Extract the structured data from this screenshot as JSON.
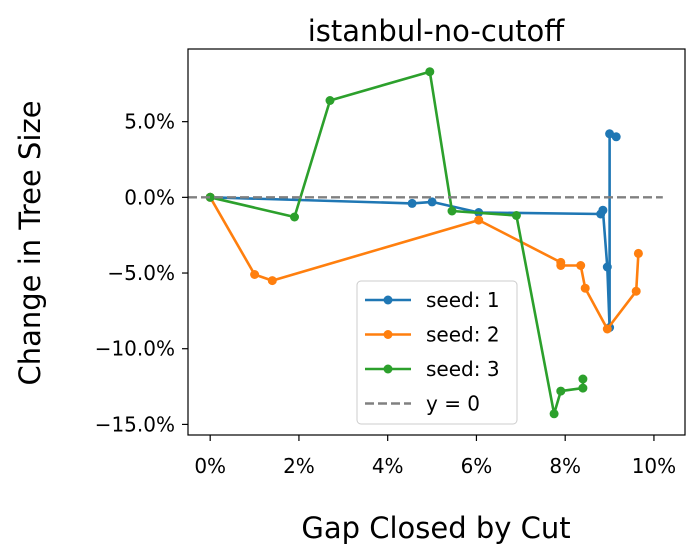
{
  "chart_data": {
    "type": "line",
    "title": "istanbul-no-cutoff",
    "xlabel": "Gap Closed by Cut",
    "ylabel": "Change in Tree Size",
    "xlim": [
      -0.5,
      10.7
    ],
    "ylim": [
      -15.7,
      9.8
    ],
    "x_ticks": [
      0,
      2,
      4,
      6,
      8,
      10
    ],
    "x_tick_labels": [
      "0%",
      "2%",
      "4%",
      "6%",
      "8%",
      "10%"
    ],
    "y_ticks": [
      -15,
      -10,
      -5,
      0,
      5
    ],
    "y_tick_labels": [
      "−15.0%",
      "−10.0%",
      "−5.0%",
      "0.0%",
      "5.0%"
    ],
    "grid": false,
    "legend_position": "lower-right",
    "series": [
      {
        "name": "seed: 1",
        "color": "#1f77b4",
        "marker": "circle",
        "line_style": "solid",
        "points": [
          [
            0,
            0
          ],
          [
            4.55,
            -0.4
          ],
          [
            5.0,
            -0.3
          ],
          [
            6.05,
            -1.0
          ],
          [
            8.8,
            -1.1
          ],
          [
            8.85,
            -0.85
          ],
          [
            8.95,
            -4.6
          ],
          [
            9.0,
            -8.6
          ],
          [
            9.0,
            4.2
          ],
          [
            9.15,
            4.0
          ]
        ]
      },
      {
        "name": "seed: 2",
        "color": "#ff7f0e",
        "marker": "circle",
        "line_style": "solid",
        "points": [
          [
            0,
            0
          ],
          [
            1.0,
            -5.1
          ],
          [
            1.4,
            -5.5
          ],
          [
            6.05,
            -1.5
          ],
          [
            7.9,
            -4.3
          ],
          [
            7.9,
            -4.5
          ],
          [
            8.35,
            -4.5
          ],
          [
            8.45,
            -6.0
          ],
          [
            8.95,
            -8.7
          ],
          [
            9.6,
            -6.2
          ],
          [
            9.65,
            -3.7
          ]
        ]
      },
      {
        "name": "seed: 3",
        "color": "#2ca02c",
        "marker": "circle",
        "line_style": "solid",
        "points": [
          [
            0,
            0
          ],
          [
            1.9,
            -1.3
          ],
          [
            2.7,
            6.4
          ],
          [
            4.95,
            8.3
          ],
          [
            5.45,
            -0.9
          ],
          [
            6.9,
            -1.2
          ],
          [
            7.75,
            -14.3
          ],
          [
            7.9,
            -12.8
          ],
          [
            8.4,
            -12.6
          ],
          [
            8.4,
            -12.0
          ]
        ]
      },
      {
        "name": "y = 0",
        "color": "#808080",
        "marker": "none",
        "line_style": "dashed",
        "points": [
          [
            -0.5,
            0
          ],
          [
            10.2,
            0
          ]
        ]
      }
    ]
  }
}
